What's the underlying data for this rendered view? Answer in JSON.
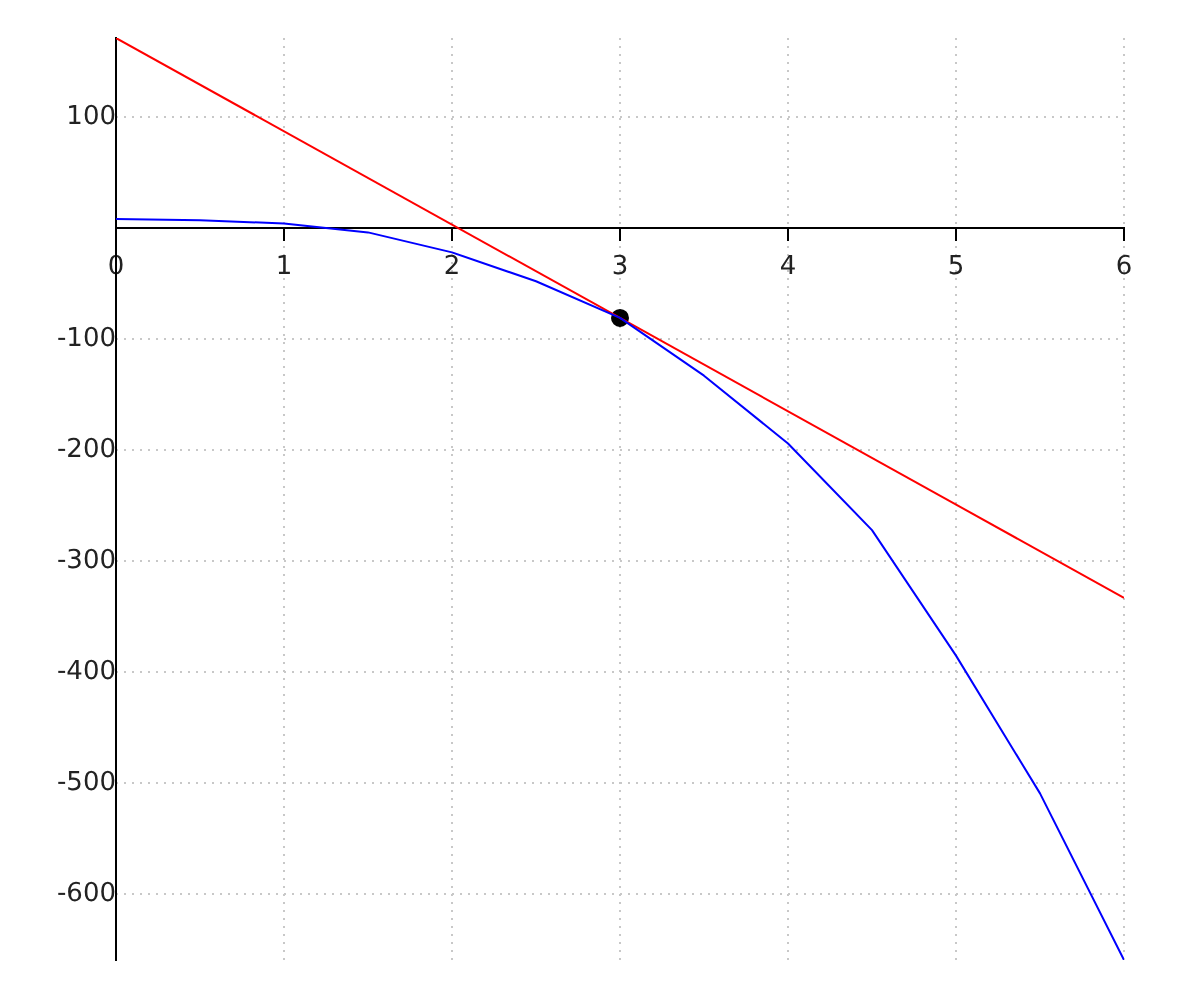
{
  "chart_data": {
    "type": "line",
    "xlim": [
      0,
      6
    ],
    "ylim": [
      -659,
      171
    ],
    "xticks": [
      0,
      1,
      2,
      3,
      4,
      5,
      6
    ],
    "yticks": [
      100,
      {
        "value": 0,
        "label": null
      },
      -100,
      -200,
      -300,
      -400,
      -500,
      -600
    ],
    "grid": true,
    "line_style": "solid",
    "series": [
      {
        "color": "#0000ff",
        "marker": "none",
        "x": [
          0,
          0.5,
          1,
          1.5,
          2,
          2.5,
          3,
          3.5,
          4,
          4.5,
          5,
          5.5,
          6
        ],
        "values": [
          8,
          7,
          4,
          -4,
          -22,
          -48,
          -81,
          -133,
          -194,
          -272,
          -385,
          -509,
          -659
        ]
      },
      {
        "color": "#ff0000",
        "marker": "none",
        "x": [
          0,
          6
        ],
        "values": [
          171,
          -333
        ]
      },
      {
        "type": "scatter",
        "color": "#000000",
        "marker": "circle",
        "x": [
          3
        ],
        "values": [
          -81
        ]
      }
    ]
  }
}
